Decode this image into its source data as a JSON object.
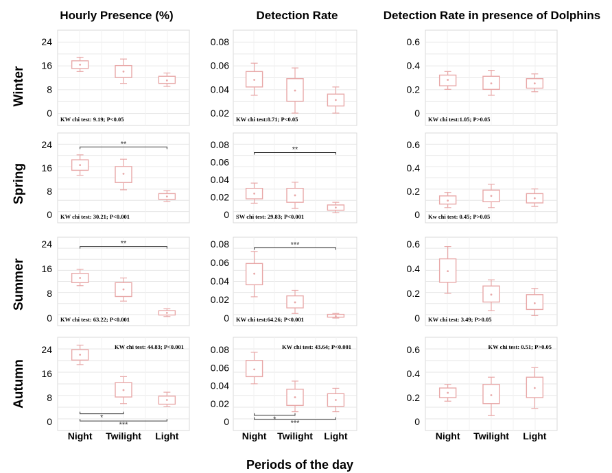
{
  "figure": {
    "column_titles": [
      "Hourly Presence (%)",
      "Detection Rate",
      "Detection Rate in presence of Dolphins"
    ],
    "row_labels": [
      "Winter",
      "Spring",
      "Summer",
      "Autumn"
    ],
    "x_axis_title": "Periods of the day",
    "box_color": "#e8a8a8",
    "grid_color": "#e6e6e6",
    "bracket_color": "#333333"
  },
  "chart_data": [
    {
      "type": "box",
      "row": "Winter",
      "column": "Hourly Presence (%)",
      "categories": [
        "Night",
        "Twilight",
        "Light"
      ],
      "ylim": [
        0,
        28
      ],
      "yticks": [
        {
          "v": 0,
          "label": "0"
        },
        {
          "v": 8,
          "label": "8"
        },
        {
          "v": 16,
          "label": "16"
        },
        {
          "v": 24,
          "label": "24"
        }
      ],
      "boxes": [
        {
          "min": 14,
          "q1": 15,
          "median": 16.3,
          "q3": 17.6,
          "max": 18.8
        },
        {
          "min": 10,
          "q1": 12,
          "median": 14,
          "q3": 16,
          "max": 18.2
        },
        {
          "min": 9,
          "q1": 10,
          "median": 11,
          "q3": 12.4,
          "max": 13.5
        }
      ],
      "stat_text": "KW chi test: 9.19; P<0.05",
      "brackets": []
    },
    {
      "type": "box",
      "row": "Winter",
      "column": "Detection Rate",
      "categories": [
        "Night",
        "Twilight",
        "Light"
      ],
      "ylim": [
        0,
        0.08
      ],
      "yticks": [
        {
          "v": 0.02,
          "label": "0.02"
        },
        {
          "v": 0.04,
          "label": "0.04"
        },
        {
          "v": 0.06,
          "label": "0.06"
        },
        {
          "v": 0.08,
          "label": "0.08"
        }
      ],
      "boxes": [
        {
          "min": 0.035,
          "q1": 0.042,
          "median": 0.048,
          "q3": 0.055,
          "max": 0.062
        },
        {
          "min": 0.02,
          "q1": 0.03,
          "median": 0.039,
          "q3": 0.049,
          "max": 0.058
        },
        {
          "min": 0.02,
          "q1": 0.026,
          "median": 0.031,
          "q3": 0.036,
          "max": 0.042
        }
      ],
      "stat_text": "KW chi test:8.71; P<0.05",
      "brackets": []
    },
    {
      "type": "box",
      "row": "Winter",
      "column": "Detection Rate in presence of Dolphins",
      "categories": [
        "Night",
        "Twilight",
        "Light"
      ],
      "ylim": [
        0,
        0.6
      ],
      "yticks": [
        {
          "v": 0,
          "label": "0"
        },
        {
          "v": 0.2,
          "label": "0.2"
        },
        {
          "v": 0.4,
          "label": "0.4"
        },
        {
          "v": 0.6,
          "label": "0.6"
        }
      ],
      "boxes": [
        {
          "min": 0.2,
          "q1": 0.23,
          "median": 0.28,
          "q3": 0.32,
          "max": 0.35
        },
        {
          "min": 0.15,
          "q1": 0.2,
          "median": 0.25,
          "q3": 0.31,
          "max": 0.36
        },
        {
          "min": 0.18,
          "q1": 0.21,
          "median": 0.25,
          "q3": 0.29,
          "max": 0.33
        }
      ],
      "stat_text": "KW chi test:1.05; P>0.05",
      "brackets": []
    },
    {
      "type": "box",
      "row": "Spring",
      "column": "Hourly Presence (%)",
      "categories": [
        "Night",
        "Twilight",
        "Light"
      ],
      "ylim": [
        0,
        25
      ],
      "yticks": [
        {
          "v": 0,
          "label": "0"
        },
        {
          "v": 8,
          "label": "8"
        },
        {
          "v": 16,
          "label": "16"
        },
        {
          "v": 24,
          "label": "24"
        }
      ],
      "boxes": [
        {
          "min": 13.5,
          "q1": 15.2,
          "median": 17,
          "q3": 18.8,
          "max": 20.5
        },
        {
          "min": 8.5,
          "q1": 11,
          "median": 14,
          "q3": 16.5,
          "max": 19
        },
        {
          "min": 4.5,
          "q1": 5.2,
          "median": 6.2,
          "q3": 7.2,
          "max": 8.2
        }
      ],
      "stat_text": "KW chi test: 30.21; P<0.001",
      "brackets": [
        {
          "from": 0,
          "to": 2,
          "y": 23.2,
          "label": "**"
        }
      ]
    },
    {
      "type": "box",
      "row": "Spring",
      "column": "Detection Rate",
      "categories": [
        "Night",
        "Twilight",
        "Light"
      ],
      "ylim": [
        0,
        0.08
      ],
      "yticks": [
        {
          "v": 0,
          "label": "0"
        },
        {
          "v": 0.02,
          "label": "0.02"
        },
        {
          "v": 0.04,
          "label": "0.04"
        },
        {
          "v": 0.06,
          "label": "0.06"
        },
        {
          "v": 0.08,
          "label": "0.08"
        }
      ],
      "boxes": [
        {
          "min": 0.013,
          "q1": 0.018,
          "median": 0.024,
          "q3": 0.03,
          "max": 0.036
        },
        {
          "min": 0.007,
          "q1": 0.014,
          "median": 0.022,
          "q3": 0.03,
          "max": 0.037
        },
        {
          "min": 0.002,
          "q1": 0.005,
          "median": 0.008,
          "q3": 0.011,
          "max": 0.014
        }
      ],
      "stat_text": "SW chi test: 29.83; P<0.001",
      "brackets": [
        {
          "from": 0,
          "to": 2,
          "y": 0.071,
          "label": "**"
        }
      ]
    },
    {
      "type": "box",
      "row": "Spring",
      "column": "Detection Rate in presence of Dolphins",
      "categories": [
        "Night",
        "Twilight",
        "Light"
      ],
      "ylim": [
        0,
        0.65
      ],
      "yticks": [
        {
          "v": 0,
          "label": "0"
        },
        {
          "v": 0.2,
          "label": "0.2"
        },
        {
          "v": 0.4,
          "label": "0.4"
        },
        {
          "v": 0.6,
          "label": "0.6"
        }
      ],
      "boxes": [
        {
          "min": 0.06,
          "q1": 0.09,
          "median": 0.12,
          "q3": 0.16,
          "max": 0.19
        },
        {
          "min": 0.06,
          "q1": 0.11,
          "median": 0.16,
          "q3": 0.21,
          "max": 0.26
        },
        {
          "min": 0.07,
          "q1": 0.1,
          "median": 0.14,
          "q3": 0.18,
          "max": 0.22
        }
      ],
      "stat_text": "Kw chi test: 0.45; P>0.05",
      "brackets": []
    },
    {
      "type": "box",
      "row": "Summer",
      "column": "Hourly Presence (%)",
      "categories": [
        "Night",
        "Twilight",
        "Light"
      ],
      "ylim": [
        0,
        25
      ],
      "yticks": [
        {
          "v": 0,
          "label": "0"
        },
        {
          "v": 8,
          "label": "8"
        },
        {
          "v": 16,
          "label": "16"
        },
        {
          "v": 24,
          "label": "24"
        }
      ],
      "boxes": [
        {
          "min": 10.5,
          "q1": 11.5,
          "median": 13,
          "q3": 14.5,
          "max": 15.8
        },
        {
          "min": 5.5,
          "q1": 7,
          "median": 9.3,
          "q3": 11.5,
          "max": 13
        },
        {
          "min": 0.5,
          "q1": 1,
          "median": 1.7,
          "q3": 2.4,
          "max": 3
        }
      ],
      "stat_text": "KW chi test: 63.22; P<0.001",
      "brackets": [
        {
          "from": 0,
          "to": 2,
          "y": 23.2,
          "label": "**"
        }
      ]
    },
    {
      "type": "box",
      "row": "Summer",
      "column": "Detection Rate",
      "categories": [
        "Night",
        "Twilight",
        "Light"
      ],
      "ylim": [
        0,
        0.08
      ],
      "yticks": [
        {
          "v": 0,
          "label": "0"
        },
        {
          "v": 0.02,
          "label": "0.02"
        },
        {
          "v": 0.04,
          "label": "0.04"
        },
        {
          "v": 0.06,
          "label": "0.06"
        },
        {
          "v": 0.08,
          "label": "0.08"
        }
      ],
      "boxes": [
        {
          "min": 0.023,
          "q1": 0.036,
          "median": 0.048,
          "q3": 0.059,
          "max": 0.072
        },
        {
          "min": 0.005,
          "q1": 0.011,
          "median": 0.017,
          "q3": 0.024,
          "max": 0.03
        },
        {
          "min": 0,
          "q1": 0.001,
          "median": 0.002,
          "q3": 0.004,
          "max": 0.005
        }
      ],
      "stat_text": "KW chi test:64.26; P<0.001",
      "brackets": [
        {
          "from": 0,
          "to": 2,
          "y": 0.076,
          "label": "***"
        }
      ]
    },
    {
      "type": "box",
      "row": "Summer",
      "column": "Detection Rate in presence of Dolphins",
      "categories": [
        "Night",
        "Twilight",
        "Light"
      ],
      "ylim": [
        0,
        0.65
      ],
      "yticks": [
        {
          "v": 0,
          "label": "0"
        },
        {
          "v": 0.2,
          "label": "0.2"
        },
        {
          "v": 0.4,
          "label": "0.4"
        },
        {
          "v": 0.6,
          "label": "0.6"
        }
      ],
      "boxes": [
        {
          "min": 0.2,
          "q1": 0.29,
          "median": 0.38,
          "q3": 0.48,
          "max": 0.58
        },
        {
          "min": 0.06,
          "q1": 0.13,
          "median": 0.19,
          "q3": 0.26,
          "max": 0.31
        },
        {
          "min": 0.02,
          "q1": 0.07,
          "median": 0.12,
          "q3": 0.19,
          "max": 0.24
        }
      ],
      "stat_text": "KW chi test: 3.49; P>0.05",
      "brackets": []
    },
    {
      "type": "box",
      "row": "Autumn",
      "column": "Hourly Presence (%)",
      "categories": [
        "Night",
        "Twilight",
        "Light"
      ],
      "ylim": [
        -2.5,
        26
      ],
      "yticks": [
        {
          "v": 0,
          "label": "0"
        },
        {
          "v": 8,
          "label": "8"
        },
        {
          "v": 16,
          "label": "16"
        },
        {
          "v": 24,
          "label": "24"
        }
      ],
      "boxes": [
        {
          "min": 19,
          "q1": 20.5,
          "median": 22.3,
          "q3": 24,
          "max": 25.5
        },
        {
          "min": 6,
          "q1": 8.2,
          "median": 10.5,
          "q3": 13,
          "max": 15
        },
        {
          "min": 5,
          "q1": 5.8,
          "median": 7.2,
          "q3": 8.5,
          "max": 9.8
        }
      ],
      "stat_text": "KW chi test: 44.83; P<0.001",
      "brackets": [
        {
          "from": 0,
          "to": 1,
          "y": 2.6,
          "label": "*"
        },
        {
          "from": 0,
          "to": 2,
          "y": 0.2,
          "label": "***"
        }
      ]
    },
    {
      "type": "box",
      "row": "Autumn",
      "column": "Detection Rate",
      "categories": [
        "Night",
        "Twilight",
        "Light"
      ],
      "ylim": [
        -0.005,
        0.085
      ],
      "yticks": [
        {
          "v": 0,
          "label": "0"
        },
        {
          "v": 0.02,
          "label": "0.02"
        },
        {
          "v": 0.04,
          "label": "0.04"
        },
        {
          "v": 0.06,
          "label": "0.06"
        },
        {
          "v": 0.08,
          "label": "0.08"
        }
      ],
      "boxes": [
        {
          "min": 0.042,
          "q1": 0.05,
          "median": 0.058,
          "q3": 0.068,
          "max": 0.077
        },
        {
          "min": 0.011,
          "q1": 0.018,
          "median": 0.027,
          "q3": 0.036,
          "max": 0.045
        },
        {
          "min": 0.011,
          "q1": 0.017,
          "median": 0.024,
          "q3": 0.031,
          "max": 0.037
        }
      ],
      "stat_text": "KW chi test: 43.64; P<0.001",
      "brackets": [
        {
          "from": 0,
          "to": 1,
          "y": 0.007,
          "label": "*"
        },
        {
          "from": 0,
          "to": 2,
          "y": 0.0025,
          "label": "***"
        }
      ]
    },
    {
      "type": "box",
      "row": "Autumn",
      "column": "Detection Rate in presence of Dolphins",
      "categories": [
        "Night",
        "Twilight",
        "Light"
      ],
      "ylim": [
        -0.06,
        0.62
      ],
      "yticks": [
        {
          "v": 0,
          "label": "0"
        },
        {
          "v": 0.2,
          "label": "0.2"
        },
        {
          "v": 0.4,
          "label": "0.4"
        },
        {
          "v": 0.6,
          "label": "0.6"
        }
      ],
      "boxes": [
        {
          "min": 0.17,
          "q1": 0.2,
          "median": 0.24,
          "q3": 0.28,
          "max": 0.31
        },
        {
          "min": 0.05,
          "q1": 0.15,
          "median": 0.22,
          "q3": 0.31,
          "max": 0.37
        },
        {
          "min": 0.11,
          "q1": 0.2,
          "median": 0.28,
          "q3": 0.37,
          "max": 0.45
        }
      ],
      "stat_text": "KW chi test: 0.51; P>0.05",
      "brackets": []
    }
  ]
}
